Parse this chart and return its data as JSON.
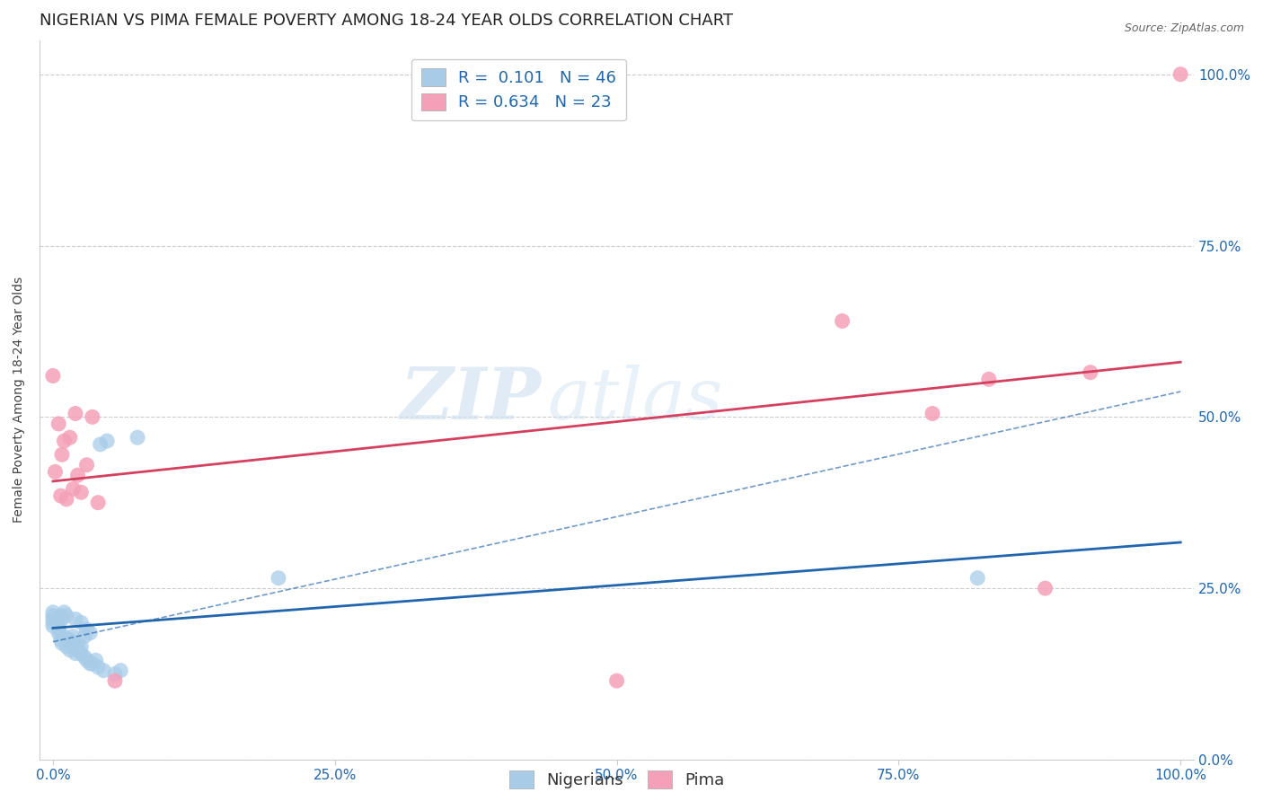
{
  "title": "NIGERIAN VS PIMA FEMALE POVERTY AMONG 18-24 YEAR OLDS CORRELATION CHART",
  "source": "Source: ZipAtlas.com",
  "ylabel": "Female Poverty Among 18-24 Year Olds",
  "xlim": [
    0.0,
    1.0
  ],
  "ylim": [
    0.0,
    1.05
  ],
  "yticks": [
    0.0,
    0.25,
    0.5,
    0.75,
    1.0
  ],
  "ytick_labels": [
    "0.0%",
    "25.0%",
    "50.0%",
    "75.0%",
    "100.0%"
  ],
  "xticks": [
    0.0,
    0.25,
    0.5,
    0.75,
    1.0
  ],
  "xtick_labels": [
    "0.0%",
    "25.0%",
    "50.0%",
    "75.0%",
    "100.0%"
  ],
  "watermark_zip": "ZIP",
  "watermark_atlas": "atlas",
  "nigerians": {
    "R": 0.101,
    "N": 46,
    "color": "#a8cce8",
    "line_color": "#2166ac",
    "label": "Nigerians",
    "x": [
      0.0,
      0.0,
      0.0,
      0.0,
      0.0,
      0.005,
      0.005,
      0.005,
      0.007,
      0.007,
      0.008,
      0.008,
      0.01,
      0.01,
      0.012,
      0.012,
      0.012,
      0.015,
      0.015,
      0.018,
      0.018,
      0.02,
      0.02,
      0.02,
      0.022,
      0.022,
      0.025,
      0.025,
      0.025,
      0.028,
      0.028,
      0.03,
      0.03,
      0.033,
      0.033,
      0.035,
      0.038,
      0.04,
      0.042,
      0.045,
      0.048,
      0.055,
      0.06,
      0.075,
      0.2,
      0.82
    ],
    "y": [
      0.195,
      0.2,
      0.205,
      0.21,
      0.215,
      0.185,
      0.19,
      0.2,
      0.175,
      0.21,
      0.17,
      0.205,
      0.18,
      0.215,
      0.165,
      0.175,
      0.21,
      0.16,
      0.175,
      0.165,
      0.18,
      0.155,
      0.165,
      0.205,
      0.16,
      0.17,
      0.155,
      0.165,
      0.2,
      0.15,
      0.18,
      0.145,
      0.19,
      0.14,
      0.185,
      0.14,
      0.145,
      0.135,
      0.46,
      0.13,
      0.465,
      0.125,
      0.13,
      0.47,
      0.265,
      0.265
    ]
  },
  "pima": {
    "R": 0.634,
    "N": 23,
    "color": "#f4a0b8",
    "line_color": "#d44060",
    "label": "Pima",
    "x": [
      0.0,
      0.002,
      0.005,
      0.007,
      0.008,
      0.01,
      0.012,
      0.015,
      0.018,
      0.02,
      0.022,
      0.025,
      0.03,
      0.035,
      0.04,
      0.055,
      0.5,
      0.7,
      0.78,
      0.83,
      0.88,
      0.92,
      1.0
    ],
    "y": [
      0.56,
      0.42,
      0.49,
      0.385,
      0.445,
      0.465,
      0.38,
      0.47,
      0.395,
      0.505,
      0.415,
      0.39,
      0.43,
      0.5,
      0.375,
      0.115,
      0.115,
      0.64,
      0.505,
      0.555,
      0.25,
      0.565,
      1.0
    ]
  },
  "background_color": "#ffffff",
  "grid_color": "#cccccc",
  "title_fontsize": 13,
  "axis_label_fontsize": 10,
  "tick_fontsize": 11,
  "legend_fontsize": 13
}
